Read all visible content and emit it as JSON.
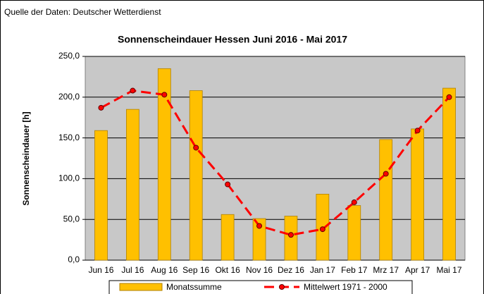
{
  "chart_data": {
    "type": "bar",
    "source": "Quelle der Daten: Deutscher Wetterdienst",
    "title": "Sonnenscheindauer Hessen Juni 2016 - Mai 2017",
    "y_label": "Sonnenscheindauer [h]",
    "categories": [
      "Jun 16",
      "Jul 16",
      "Aug 16",
      "Sep 16",
      "Okt 16",
      "Nov 16",
      "Dez 16",
      "Jan 17",
      "Feb 17",
      "Mrz 17",
      "Apr 17",
      "Mai 17"
    ],
    "series": [
      {
        "name": "Monatssumme",
        "type": "bar",
        "color": "#ffc000",
        "values": [
          159,
          185,
          235,
          208,
          56,
          51,
          54,
          81,
          67,
          148,
          161,
          211
        ]
      },
      {
        "name": "Mittelwert 1971 - 2000",
        "type": "line",
        "color": "#ff0000",
        "values": [
          187,
          208,
          203,
          138,
          93,
          42,
          31,
          38,
          71,
          106,
          159,
          200
        ]
      }
    ],
    "ylim": [
      0,
      250
    ],
    "yticks": [
      {
        "value": 0,
        "label": "0,0"
      },
      {
        "value": 50,
        "label": "50,0"
      },
      {
        "value": 100,
        "label": "100,0"
      },
      {
        "value": 150,
        "label": "150,0"
      },
      {
        "value": 200,
        "label": "200,0"
      },
      {
        "value": 250,
        "label": "250,0"
      }
    ],
    "grid": true,
    "legend": "bottom"
  }
}
